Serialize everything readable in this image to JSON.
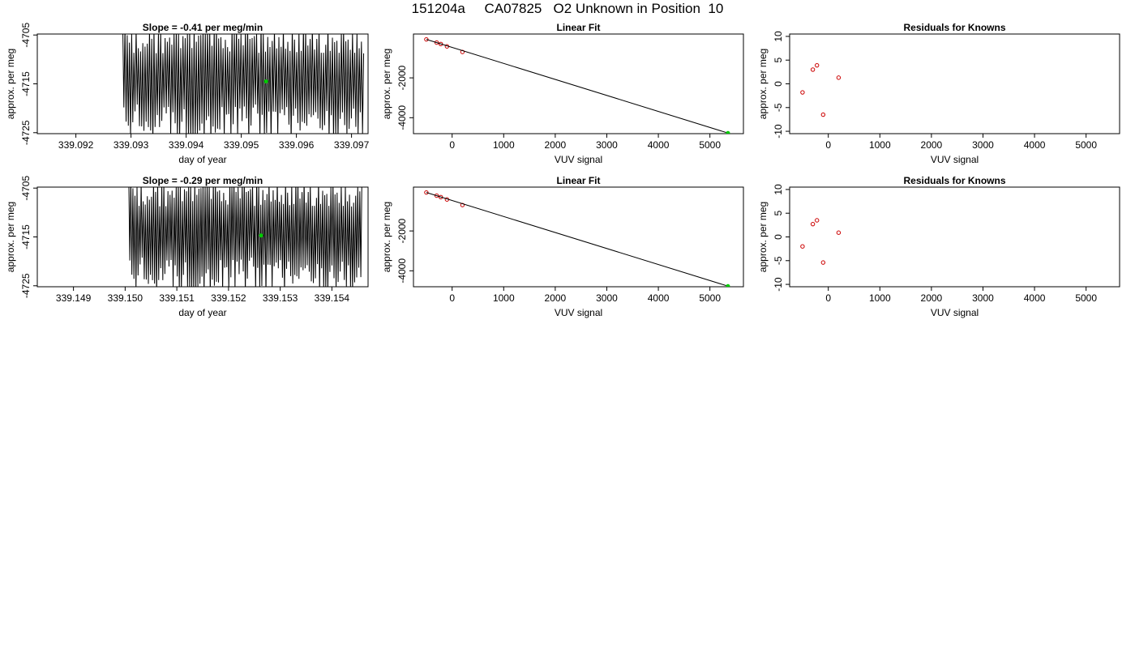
{
  "figure": {
    "title": "151204a     CA07825   O2 Unknown in Position  10"
  },
  "chart_data": [
    {
      "type": "line",
      "title": "Slope =  -0.41  per meg/min",
      "xlabel": "day of year",
      "ylabel": "approx. per meg",
      "xlim": [
        339.0913,
        339.0973
      ],
      "ylim": [
        -4725.2,
        -4704.8
      ],
      "xticks": [
        "339.092",
        "339.093",
        "339.094",
        "339.095",
        "339.096",
        "339.097"
      ],
      "yticks": [
        "-4705",
        "-4715",
        "-4725"
      ],
      "series": [
        {
          "style": "oscillating-line",
          "color": "#000000",
          "x_start": 339.09285,
          "x_end": 339.09722,
          "cycles": 108,
          "base": -4715
        },
        {
          "style": "point",
          "color": "#00cc00",
          "x": [
            339.09545
          ],
          "y": [
            -4714.5
          ]
        }
      ]
    },
    {
      "type": "scatter",
      "title": "Linear Fit",
      "xlabel": "VUV signal",
      "ylabel": "approx. per meg",
      "xlim": [
        -750,
        5650
      ],
      "ylim": [
        -4800,
        200
      ],
      "xticks": [
        "0",
        "1000",
        "2000",
        "3000",
        "4000",
        "5000"
      ],
      "yticks": [
        "-2000",
        "-4000"
      ],
      "series": [
        {
          "style": "points",
          "color": "#cc0000",
          "x": [
            -500,
            -300,
            -220,
            -100,
            200
          ],
          "y": [
            -70,
            -230,
            -300,
            -420,
            -700
          ]
        },
        {
          "style": "line",
          "color": "#000000",
          "x": [
            -500,
            5350
          ],
          "y": [
            -70,
            -4770
          ]
        },
        {
          "style": "point",
          "color": "#00cc00",
          "x": [
            5350
          ],
          "y": [
            -4770
          ]
        }
      ]
    },
    {
      "type": "scatter",
      "title": "Residuals for Knowns",
      "xlabel": "VUV signal",
      "ylabel": "approx. per meg",
      "xlim": [
        -750,
        5650
      ],
      "ylim": [
        -10.5,
        10.5
      ],
      "xticks": [
        "0",
        "1000",
        "2000",
        "3000",
        "4000",
        "5000"
      ],
      "yticks": [
        "-10",
        "-5",
        "0",
        "5",
        "10"
      ],
      "series": [
        {
          "style": "points",
          "color": "#cc0000",
          "x": [
            -500,
            -300,
            -220,
            -100,
            200
          ],
          "y": [
            -1.8,
            3,
            3.9,
            -6.5,
            1.3
          ]
        }
      ]
    },
    {
      "type": "line",
      "title": "Slope =  -0.29  per meg/min",
      "xlabel": "day of year",
      "ylabel": "approx. per meg",
      "xlim": [
        339.1483,
        339.1547
      ],
      "ylim": [
        -4725.2,
        -4704.8
      ],
      "xticks": [
        "339.149",
        "339.150",
        "339.151",
        "339.152",
        "339.153",
        "339.154"
      ],
      "yticks": [
        "-4705",
        "-4715",
        "-4725"
      ],
      "series": [
        {
          "style": "oscillating-line",
          "color": "#000000",
          "x_start": 339.15007,
          "x_end": 339.15458,
          "cycles": 113,
          "base": -4715
        },
        {
          "style": "point",
          "color": "#00cc00",
          "x": [
            339.15263
          ],
          "y": [
            -4714.7
          ]
        }
      ]
    },
    {
      "type": "scatter",
      "title": "Linear Fit",
      "xlabel": "VUV signal",
      "ylabel": "approx. per meg",
      "xlim": [
        -750,
        5650
      ],
      "ylim": [
        -4800,
        200
      ],
      "xticks": [
        "0",
        "1000",
        "2000",
        "3000",
        "4000",
        "5000"
      ],
      "yticks": [
        "-2000",
        "-4000"
      ],
      "series": [
        {
          "style": "points",
          "color": "#cc0000",
          "x": [
            -500,
            -300,
            -220,
            -100,
            200
          ],
          "y": [
            -70,
            -230,
            -300,
            -420,
            -700
          ]
        },
        {
          "style": "line",
          "color": "#000000",
          "x": [
            -500,
            5350
          ],
          "y": [
            -70,
            -4770
          ]
        },
        {
          "style": "point",
          "color": "#00cc00",
          "x": [
            5350
          ],
          "y": [
            -4770
          ]
        }
      ]
    },
    {
      "type": "scatter",
      "title": "Residuals for Knowns",
      "xlabel": "VUV signal",
      "ylabel": "approx. per meg",
      "xlim": [
        -750,
        5650
      ],
      "ylim": [
        -10.5,
        10.5
      ],
      "xticks": [
        "0",
        "1000",
        "2000",
        "3000",
        "4000",
        "5000"
      ],
      "yticks": [
        "-10",
        "-5",
        "0",
        "5",
        "10"
      ],
      "series": [
        {
          "style": "points",
          "color": "#cc0000",
          "x": [
            -500,
            -300,
            -220,
            -100,
            200
          ],
          "y": [
            -2,
            2.7,
            3.5,
            -5.4,
            0.9
          ]
        }
      ]
    }
  ]
}
